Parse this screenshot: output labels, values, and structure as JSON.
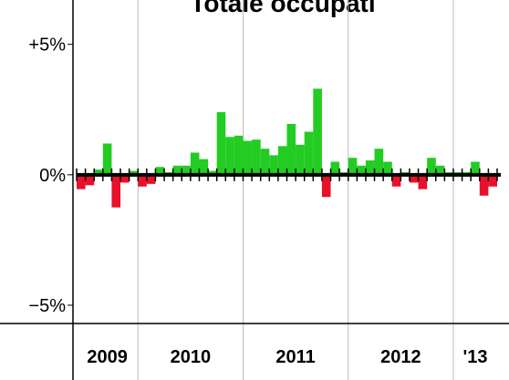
{
  "chart_data": {
    "type": "bar",
    "title": "Totale occupati",
    "groups": [
      {
        "label": "2009",
        "count": 7
      },
      {
        "label": "2010",
        "count": 12
      },
      {
        "label": "2011",
        "count": 12
      },
      {
        "label": "2012",
        "count": 12
      },
      {
        "label": "'13",
        "count": 5
      }
    ],
    "values": [
      -0.55,
      -0.4,
      0.2,
      1.2,
      -1.25,
      -0.3,
      0.15,
      -0.45,
      -0.35,
      0.3,
      0.1,
      0.35,
      0.35,
      0.85,
      0.6,
      0.15,
      2.4,
      1.45,
      1.5,
      1.3,
      1.35,
      1.0,
      0.75,
      1.1,
      1.95,
      1.15,
      1.65,
      3.3,
      -0.85,
      0.5,
      0.1,
      0.65,
      0.35,
      0.55,
      1.0,
      0.5,
      -0.45,
      0.1,
      -0.3,
      -0.55,
      0.65,
      0.35,
      0.1,
      0.1,
      0.1,
      0.5,
      -0.8,
      -0.45
    ],
    "positive_color": "#22cc22",
    "negative_color": "#e8102a",
    "ylim": [
      -5.7,
      6.7
    ],
    "yticks": [
      {
        "value": 5,
        "label": "+5%"
      },
      {
        "value": 0,
        "label": "0%"
      },
      {
        "value": -5,
        "label": "−5%"
      }
    ]
  }
}
